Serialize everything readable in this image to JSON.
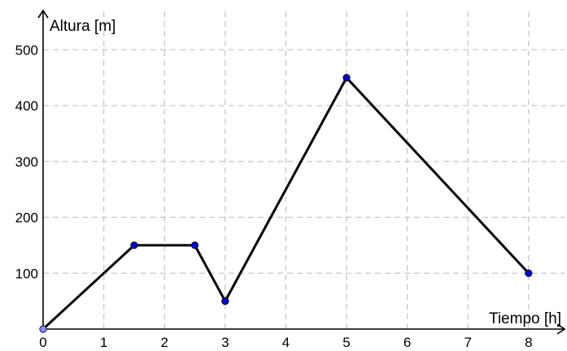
{
  "chart_data": {
    "type": "line",
    "title": "",
    "xlabel": "Tiempo [h]",
    "ylabel": "Altura [m]",
    "xlim": [
      0,
      8.6
    ],
    "ylim": [
      0,
      500
    ],
    "x_ticks": [
      0,
      1,
      2,
      3,
      4,
      5,
      6,
      7,
      8
    ],
    "y_ticks": [
      100,
      200,
      300,
      400,
      500
    ],
    "grid": true,
    "series": [
      {
        "points": [
          {
            "x": 0,
            "y": 0
          },
          {
            "x": 1.5,
            "y": 150
          },
          {
            "x": 2.5,
            "y": 150
          },
          {
            "x": 3,
            "y": 50
          },
          {
            "x": 5,
            "y": 450
          },
          {
            "x": 8,
            "y": 100
          }
        ],
        "line_color": "#000000",
        "marker_color": "#0000cc",
        "first_marker_color": "#8a8aff"
      }
    ]
  }
}
